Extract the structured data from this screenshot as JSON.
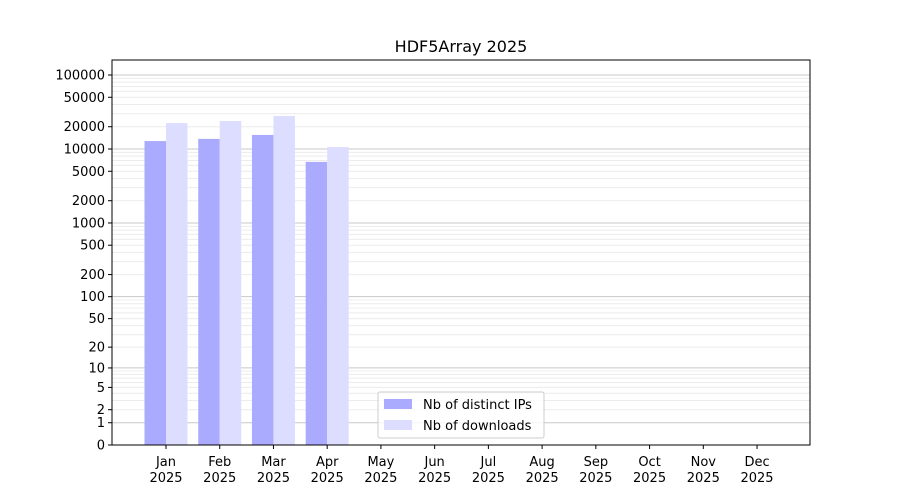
{
  "chart_data": {
    "type": "bar",
    "title": "HDF5Array 2025",
    "xlabel": "",
    "ylabel": "",
    "yscale": "log10(1+y)",
    "ylim": [
      0,
      160000
    ],
    "categories": [
      "Jan\n2025",
      "Feb\n2025",
      "Mar\n2025",
      "Apr\n2025",
      "May\n2025",
      "Jun\n2025",
      "Jul\n2025",
      "Aug\n2025",
      "Sep\n2025",
      "Oct\n2025",
      "Nov\n2025",
      "Dec\n2025"
    ],
    "yticks": [
      0,
      1,
      2,
      5,
      10,
      20,
      50,
      100,
      200,
      500,
      1000,
      2000,
      5000,
      10000,
      20000,
      50000,
      100000
    ],
    "grid": true,
    "legend_position": "lower-center",
    "series": [
      {
        "name": "Nb of distinct IPs",
        "color": "#aaaaff",
        "values": [
          12800,
          13700,
          15500,
          6700,
          null,
          null,
          null,
          null,
          null,
          null,
          null,
          null
        ]
      },
      {
        "name": "Nb of downloads",
        "color": "#ddddff",
        "values": [
          22400,
          23900,
          27900,
          10600,
          null,
          null,
          null,
          null,
          null,
          null,
          null,
          null
        ]
      }
    ]
  }
}
